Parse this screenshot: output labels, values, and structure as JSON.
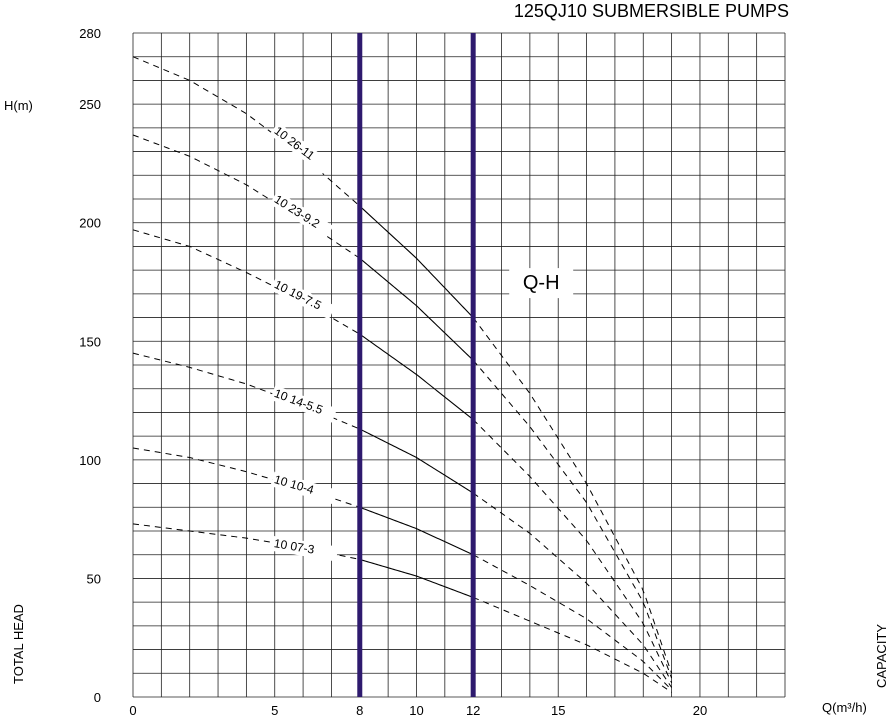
{
  "chart_data": {
    "type": "line",
    "title": "125QJ10 SUBMERSIBLE PUMPS",
    "ylabel_top": "H(m)",
    "ylabel_side": "TOTAL HEAD",
    "xlabel": "Q(m³/h)",
    "xlabel_side": "CAPACITY",
    "curve_family_label": "Q-H",
    "xlim": [
      0,
      23
    ],
    "ylim": [
      0,
      280
    ],
    "x_ticks": [
      0,
      5,
      8,
      10,
      12,
      15,
      20
    ],
    "y_ticks": [
      0,
      50,
      100,
      150,
      200,
      250,
      280
    ],
    "grid": true,
    "operating_range": [
      8,
      12
    ],
    "range_line_color": "#2e1a6e",
    "series": [
      {
        "name": "10 26-11",
        "x": [
          0,
          2,
          4,
          6,
          8,
          10,
          12,
          14,
          16,
          18,
          19
        ],
        "y": [
          270,
          260,
          246,
          228,
          207,
          185,
          160,
          128,
          90,
          45,
          10
        ]
      },
      {
        "name": "10 23-9.2",
        "x": [
          0,
          2,
          4,
          6,
          8,
          10,
          12,
          14,
          16,
          18,
          19
        ],
        "y": [
          237,
          228,
          216,
          201,
          185,
          165,
          142,
          114,
          82,
          40,
          8
        ]
      },
      {
        "name": "10 19-7.5",
        "x": [
          0,
          2,
          4,
          6,
          8,
          10,
          12,
          14,
          16,
          18,
          19
        ],
        "y": [
          197,
          190,
          179,
          167,
          153,
          136,
          117,
          93,
          66,
          31,
          6
        ]
      },
      {
        "name": "10 14-5.5",
        "x": [
          0,
          2,
          4,
          6,
          8,
          10,
          12,
          14,
          16,
          18,
          19
        ],
        "y": [
          145,
          139,
          132,
          123,
          113,
          101,
          86,
          69,
          48,
          22,
          4
        ]
      },
      {
        "name": "10 10-4",
        "x": [
          0,
          2,
          4,
          6,
          8,
          10,
          12,
          14,
          16,
          18,
          19
        ],
        "y": [
          105,
          101,
          95,
          88,
          80,
          71,
          60,
          47,
          33,
          15,
          3
        ]
      },
      {
        "name": "10 07-3",
        "x": [
          0,
          2,
          4,
          6,
          8,
          10,
          12,
          14,
          16,
          18,
          19
        ],
        "y": [
          73,
          70,
          67,
          63,
          58,
          51,
          42,
          32,
          22,
          10,
          2
        ]
      }
    ],
    "curve_labels": [
      {
        "text": "10 26-11",
        "series": 0
      },
      {
        "text": "10 23-9.2",
        "series": 1
      },
      {
        "text": "10 19-7.5",
        "series": 2
      },
      {
        "text": "10 14-5.5",
        "series": 3
      },
      {
        "text": "10 10-4",
        "series": 4
      },
      {
        "text": "10 07-3",
        "series": 5
      }
    ]
  }
}
